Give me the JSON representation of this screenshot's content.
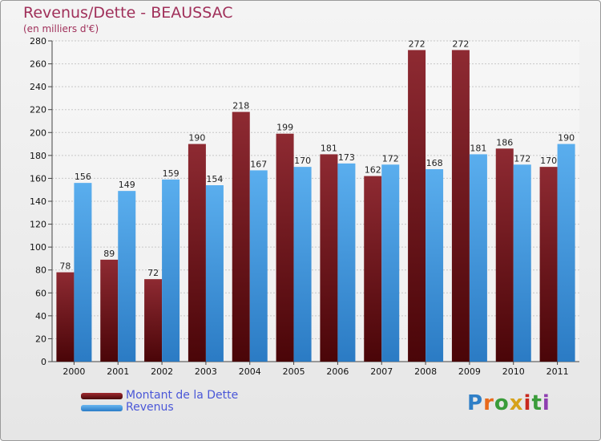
{
  "chart_data": {
    "type": "bar",
    "title": "Revenus/Dette - BEAUSSAC",
    "subtitle": "(en milliers d'€)",
    "categories": [
      "2000",
      "2001",
      "2002",
      "2003",
      "2004",
      "2005",
      "2006",
      "2007",
      "2008",
      "2009",
      "2010",
      "2011"
    ],
    "series": [
      {
        "name": "Montant de la Dette",
        "color": "#8b1c22",
        "values": [
          78,
          89,
          72,
          190,
          218,
          199,
          181,
          162,
          272,
          272,
          186,
          170
        ]
      },
      {
        "name": "Revenus",
        "color": "#4aa0e2",
        "values": [
          156,
          149,
          159,
          154,
          167,
          170,
          173,
          172,
          168,
          181,
          172,
          190
        ]
      }
    ],
    "ylim": [
      0,
      280
    ],
    "yticks": [
      0,
      20,
      40,
      60,
      80,
      100,
      120,
      140,
      160,
      180,
      200,
      220,
      240,
      260,
      280
    ],
    "grid": true,
    "legend": "bottom-left"
  },
  "logo": {
    "text": "Proxiti",
    "letters": [
      "P",
      "r",
      "o",
      "x",
      "i",
      "t",
      "i"
    ],
    "colors": [
      "#2f7fc7",
      "#e86a1c",
      "#3a9c3a",
      "#d6a21a",
      "#c8281e",
      "#3a9c3a",
      "#8e3fb0"
    ]
  }
}
